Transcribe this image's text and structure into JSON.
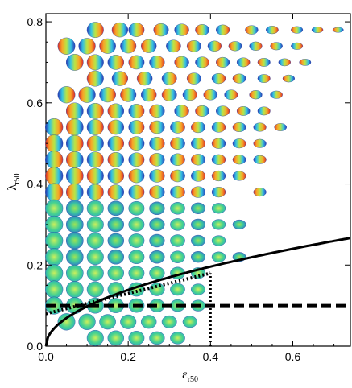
{
  "chart_data": {
    "type": "scatter",
    "title": "",
    "xlabel": "ε",
    "xlabel_sub": "r50",
    "ylabel": "λ",
    "ylabel_sub": "r50",
    "xlim": [
      0,
      0.74
    ],
    "ylim": [
      0,
      0.82
    ],
    "x_ticks": [
      0.0,
      0.2,
      0.4,
      0.6
    ],
    "x_tick_labels": [
      "0.0",
      "0.2",
      "0.4",
      "0.6"
    ],
    "y_ticks": [
      0.0,
      0.2,
      0.4,
      0.6,
      0.8
    ],
    "y_tick_labels": [
      "0.0",
      "0.2",
      "0.4",
      "0.6",
      "0.8"
    ],
    "grid": false,
    "legend": "none",
    "marker_type": "galaxy velocity-map thumbnails (colormap blue-green-yellow-red)",
    "rows": [
      {
        "lambda": 0.78,
        "eps": [
          0.12,
          0.18,
          0.22,
          0.28,
          0.33,
          0.38,
          0.43,
          0.5,
          0.55,
          0.61,
          0.66,
          0.71
        ]
      },
      {
        "lambda": 0.74,
        "eps": [
          0.05,
          0.1,
          0.15,
          0.2,
          0.25,
          0.31,
          0.36,
          0.41,
          0.46,
          0.51,
          0.56,
          0.61
        ]
      },
      {
        "lambda": 0.7,
        "eps": [
          0.07,
          0.12,
          0.17,
          0.22,
          0.27,
          0.33,
          0.38,
          0.43,
          0.48,
          0.53,
          0.58,
          0.63
        ]
      },
      {
        "lambda": 0.66,
        "eps": [
          0.12,
          0.18,
          0.24,
          0.3,
          0.36,
          0.42,
          0.47,
          0.53,
          0.59
        ]
      },
      {
        "lambda": 0.62,
        "eps": [
          0.05,
          0.1,
          0.15,
          0.2,
          0.25,
          0.3,
          0.35,
          0.4,
          0.45,
          0.51,
          0.56
        ]
      },
      {
        "lambda": 0.58,
        "eps": [
          0.07,
          0.12,
          0.17,
          0.22,
          0.27,
          0.33,
          0.38,
          0.43,
          0.48,
          0.53
        ]
      },
      {
        "lambda": 0.54,
        "eps": [
          0.02,
          0.07,
          0.12,
          0.17,
          0.22,
          0.27,
          0.32,
          0.37,
          0.42,
          0.47,
          0.52,
          0.57
        ]
      },
      {
        "lambda": 0.5,
        "eps": [
          0.02,
          0.07,
          0.12,
          0.17,
          0.22,
          0.27,
          0.32,
          0.37,
          0.42,
          0.47,
          0.52
        ]
      },
      {
        "lambda": 0.46,
        "eps": [
          0.02,
          0.07,
          0.12,
          0.17,
          0.22,
          0.27,
          0.32,
          0.37,
          0.42,
          0.47,
          0.52
        ]
      },
      {
        "lambda": 0.42,
        "eps": [
          0.02,
          0.07,
          0.12,
          0.17,
          0.22,
          0.27,
          0.32,
          0.37,
          0.42,
          0.47
        ]
      },
      {
        "lambda": 0.38,
        "eps": [
          0.02,
          0.07,
          0.12,
          0.17,
          0.22,
          0.27,
          0.32,
          0.37,
          0.42,
          0.52
        ]
      },
      {
        "lambda": 0.34,
        "eps": [
          0.02,
          0.07,
          0.12,
          0.17,
          0.22,
          0.27,
          0.32,
          0.37,
          0.42
        ]
      },
      {
        "lambda": 0.3,
        "eps": [
          0.02,
          0.07,
          0.12,
          0.17,
          0.22,
          0.27,
          0.32,
          0.37,
          0.42,
          0.47
        ]
      },
      {
        "lambda": 0.26,
        "eps": [
          0.02,
          0.07,
          0.12,
          0.17,
          0.22,
          0.27,
          0.32,
          0.37,
          0.42
        ]
      },
      {
        "lambda": 0.22,
        "eps": [
          0.02,
          0.07,
          0.12,
          0.17,
          0.22,
          0.27,
          0.32,
          0.37,
          0.42,
          0.47
        ]
      },
      {
        "lambda": 0.18,
        "eps": [
          0.02,
          0.07,
          0.12,
          0.17,
          0.22,
          0.27,
          0.32,
          0.37
        ]
      },
      {
        "lambda": 0.14,
        "eps": [
          0.02,
          0.07,
          0.12,
          0.17,
          0.22,
          0.27,
          0.32,
          0.37
        ]
      },
      {
        "lambda": 0.1,
        "eps": [
          0.02,
          0.07,
          0.12,
          0.17,
          0.22,
          0.27,
          0.32,
          0.37
        ]
      },
      {
        "lambda": 0.06,
        "eps": [
          0.05,
          0.1,
          0.15,
          0.2,
          0.25,
          0.3,
          0.35
        ]
      },
      {
        "lambda": 0.02,
        "eps": [
          0.12,
          0.17,
          0.22,
          0.27,
          0.32
        ]
      }
    ],
    "lines": [
      {
        "style": "solid",
        "function": "lambda = 0.31 * sqrt(eps)",
        "x_range": [
          0,
          0.74
        ]
      },
      {
        "style": "dashed",
        "function": "lambda = 0.1",
        "x_range": [
          0,
          0.74
        ]
      },
      {
        "style": "dotted",
        "function": "lambda = 0.08 + eps/4",
        "x_range": [
          0,
          0.4
        ]
      },
      {
        "style": "dotted",
        "function": "eps = 0.4",
        "y_range": [
          0,
          0.18
        ]
      }
    ]
  }
}
